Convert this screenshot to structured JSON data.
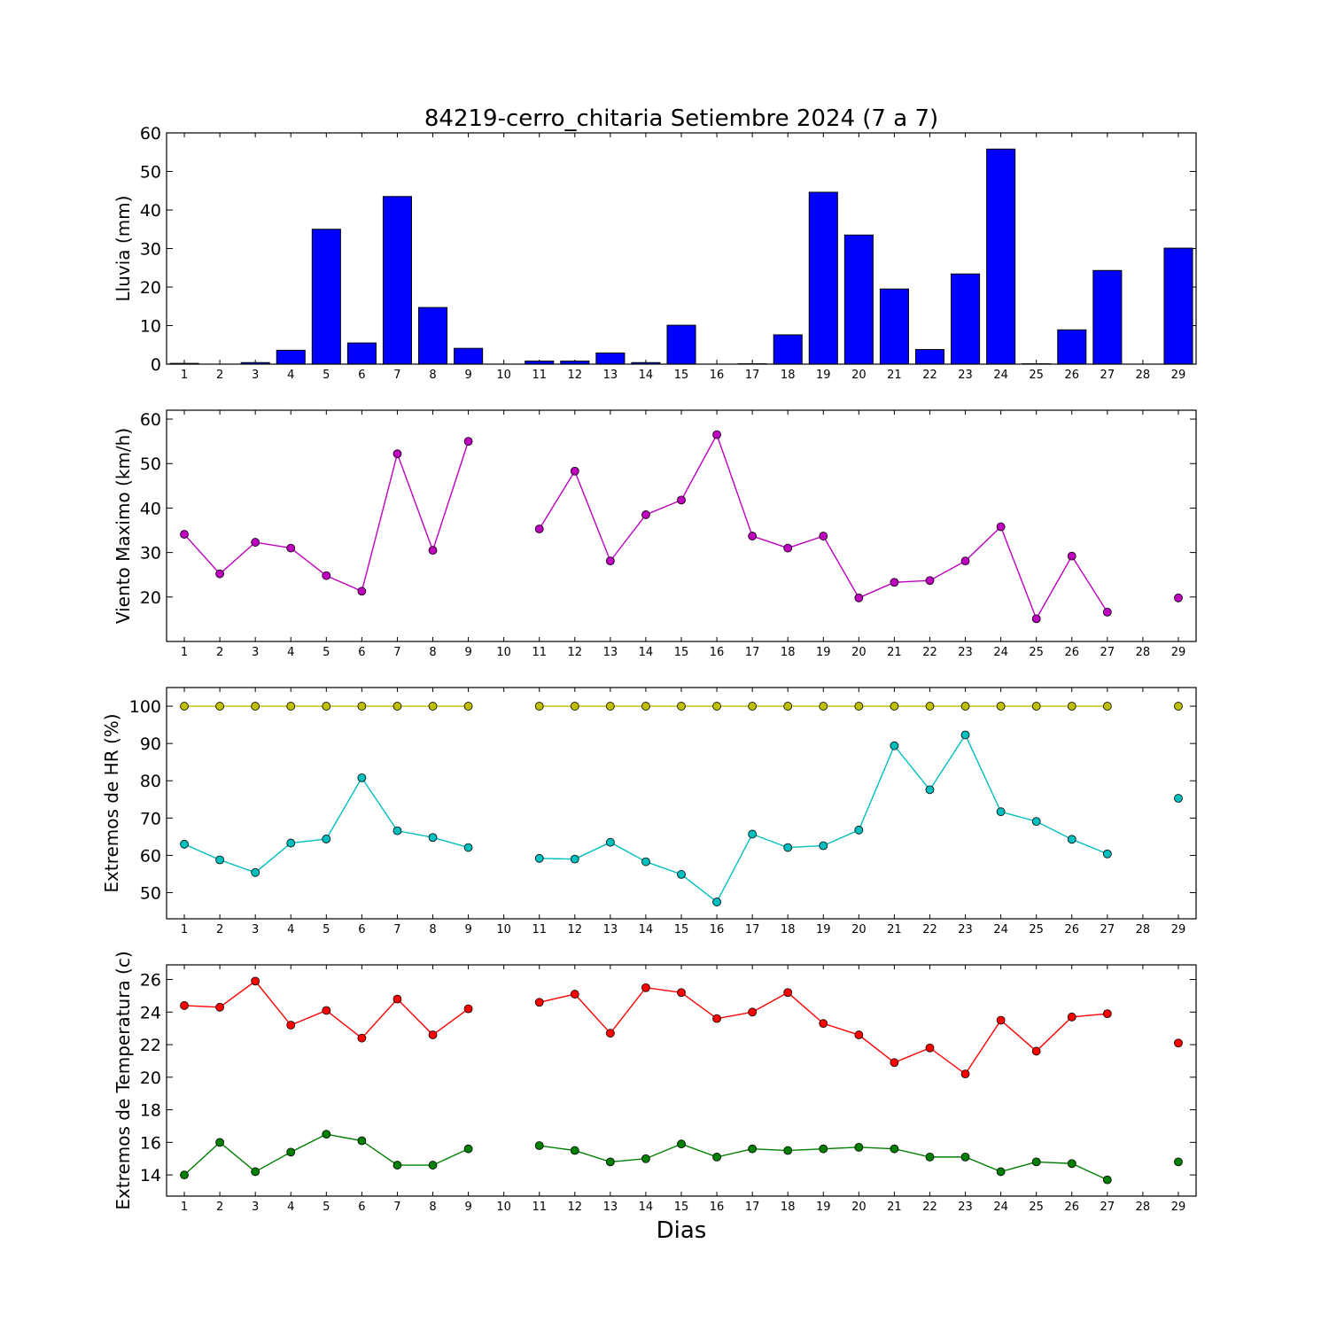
{
  "figure": {
    "title": "84219-cerro_chitaria Setiembre 2024  (7 a 7)",
    "xlabel": "Dias"
  },
  "chart_data": [
    {
      "type": "bar",
      "ylabel": "Lluvia (mm)",
      "ylim": [
        0,
        60
      ],
      "yticks": [
        0,
        10,
        20,
        30,
        40,
        50,
        60
      ],
      "xlim": [
        0.5,
        29.5
      ],
      "xticks": [
        1,
        2,
        3,
        4,
        5,
        6,
        7,
        8,
        9,
        10,
        11,
        12,
        13,
        14,
        15,
        16,
        17,
        18,
        19,
        20,
        21,
        22,
        23,
        24,
        25,
        26,
        27,
        28,
        29
      ],
      "grid": false,
      "series": [
        {
          "color": "#0000ff",
          "x": [
            1,
            2,
            3,
            4,
            5,
            6,
            7,
            8,
            9,
            10,
            11,
            12,
            13,
            14,
            15,
            16,
            17,
            18,
            19,
            20,
            21,
            22,
            23,
            24,
            25,
            26,
            27,
            28,
            29
          ],
          "values": [
            0.2,
            0,
            0.4,
            3.6,
            35,
            5.5,
            43.5,
            14.7,
            4.1,
            0,
            0.8,
            0.8,
            2.9,
            0.4,
            10.1,
            0,
            0.1,
            7.6,
            44.6,
            33.5,
            19.5,
            3.8,
            23.4,
            55.8,
            0.1,
            8.9,
            24.3,
            0,
            30.1
          ]
        }
      ]
    },
    {
      "type": "line",
      "ylabel": "Viento Maximo (km/h)",
      "ylim": [
        10,
        62
      ],
      "yticks": [
        20,
        30,
        40,
        50,
        60
      ],
      "xlim": [
        0.5,
        29.5
      ],
      "xticks": [
        1,
        2,
        3,
        4,
        5,
        6,
        7,
        8,
        9,
        10,
        11,
        12,
        13,
        14,
        15,
        16,
        17,
        18,
        19,
        20,
        21,
        22,
        23,
        24,
        25,
        26,
        27,
        28,
        29
      ],
      "grid": false,
      "series": [
        {
          "color": "#bf00bf",
          "x": [
            1,
            2,
            3,
            4,
            5,
            6,
            7,
            8,
            9,
            10,
            11,
            12,
            13,
            14,
            15,
            16,
            17,
            18,
            19,
            20,
            21,
            22,
            23,
            24,
            25,
            26,
            27,
            28,
            29
          ],
          "values": [
            34.1,
            25.2,
            32.3,
            31.0,
            24.8,
            21.3,
            52.2,
            30.5,
            55.0,
            null,
            35.3,
            48.3,
            28.1,
            38.5,
            41.8,
            56.5,
            33.7,
            31.0,
            33.7,
            19.8,
            23.3,
            23.7,
            28.1,
            35.8,
            15.1,
            29.2,
            16.6,
            null,
            19.8
          ]
        }
      ]
    },
    {
      "type": "line",
      "ylabel": "Extremos de HR (%)",
      "ylim": [
        43,
        105
      ],
      "yticks": [
        50,
        60,
        70,
        80,
        90,
        100
      ],
      "xlim": [
        0.5,
        29.5
      ],
      "xticks": [
        1,
        2,
        3,
        4,
        5,
        6,
        7,
        8,
        9,
        10,
        11,
        12,
        13,
        14,
        15,
        16,
        17,
        18,
        19,
        20,
        21,
        22,
        23,
        24,
        25,
        26,
        27,
        28,
        29
      ],
      "grid": false,
      "series": [
        {
          "color": "#bfbf00",
          "x": [
            1,
            2,
            3,
            4,
            5,
            6,
            7,
            8,
            9,
            10,
            11,
            12,
            13,
            14,
            15,
            16,
            17,
            18,
            19,
            20,
            21,
            22,
            23,
            24,
            25,
            26,
            27,
            28,
            29
          ],
          "values": [
            100,
            100,
            100,
            100,
            100,
            100,
            100,
            100,
            100,
            null,
            100,
            100,
            100,
            100,
            100,
            100,
            100,
            100,
            100,
            100,
            100,
            100,
            100,
            100,
            100,
            100,
            100,
            null,
            100
          ]
        },
        {
          "color": "#00bfbf",
          "x": [
            1,
            2,
            3,
            4,
            5,
            6,
            7,
            8,
            9,
            10,
            11,
            12,
            13,
            14,
            15,
            16,
            17,
            18,
            19,
            20,
            21,
            22,
            23,
            24,
            25,
            26,
            27,
            28,
            29
          ],
          "values": [
            63.0,
            58.8,
            55.4,
            63.3,
            64.4,
            80.8,
            66.6,
            64.8,
            62.1,
            null,
            59.2,
            59.0,
            63.5,
            58.3,
            54.9,
            47.5,
            65.7,
            62.1,
            62.6,
            66.8,
            89.4,
            77.6,
            92.3,
            71.7,
            69.1,
            64.3,
            60.4,
            null,
            75.3
          ]
        }
      ]
    },
    {
      "type": "line",
      "ylabel": "Extremos de Temperatura (c)",
      "ylim": [
        12.7,
        26.9
      ],
      "yticks": [
        14,
        16,
        18,
        20,
        22,
        24,
        26
      ],
      "xlim": [
        0.5,
        29.5
      ],
      "xticks": [
        1,
        2,
        3,
        4,
        5,
        6,
        7,
        8,
        9,
        10,
        11,
        12,
        13,
        14,
        15,
        16,
        17,
        18,
        19,
        20,
        21,
        22,
        23,
        24,
        25,
        26,
        27,
        28,
        29
      ],
      "grid": false,
      "series": [
        {
          "color": "#ff0000",
          "x": [
            1,
            2,
            3,
            4,
            5,
            6,
            7,
            8,
            9,
            10,
            11,
            12,
            13,
            14,
            15,
            16,
            17,
            18,
            19,
            20,
            21,
            22,
            23,
            24,
            25,
            26,
            27,
            28,
            29
          ],
          "values": [
            24.4,
            24.3,
            25.9,
            23.2,
            24.1,
            22.4,
            24.8,
            22.6,
            24.2,
            null,
            24.6,
            25.1,
            22.7,
            25.5,
            25.2,
            23.6,
            24.0,
            25.2,
            23.3,
            22.6,
            20.9,
            21.8,
            20.2,
            23.5,
            21.6,
            23.7,
            23.9,
            null,
            22.1
          ]
        },
        {
          "color": "#008000",
          "x": [
            1,
            2,
            3,
            4,
            5,
            6,
            7,
            8,
            9,
            10,
            11,
            12,
            13,
            14,
            15,
            16,
            17,
            18,
            19,
            20,
            21,
            22,
            23,
            24,
            25,
            26,
            27,
            28,
            29
          ],
          "values": [
            14.0,
            16.0,
            14.2,
            15.4,
            16.5,
            16.1,
            14.6,
            14.6,
            15.6,
            null,
            15.8,
            15.5,
            14.8,
            15.0,
            15.9,
            15.1,
            15.6,
            15.5,
            15.6,
            15.7,
            15.6,
            15.1,
            15.1,
            14.2,
            14.8,
            14.7,
            13.7,
            null,
            14.8
          ]
        }
      ]
    }
  ]
}
